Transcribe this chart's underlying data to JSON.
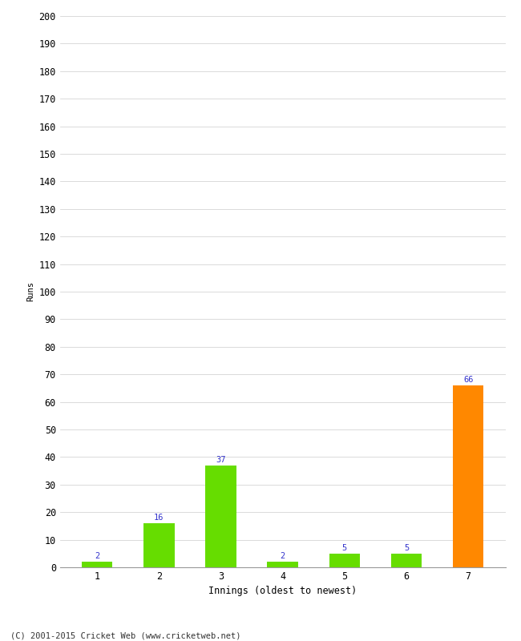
{
  "categories": [
    "1",
    "2",
    "3",
    "4",
    "5",
    "6",
    "7"
  ],
  "values": [
    2,
    16,
    37,
    2,
    5,
    5,
    66
  ],
  "bar_colors": [
    "#66dd00",
    "#66dd00",
    "#66dd00",
    "#66dd00",
    "#66dd00",
    "#66dd00",
    "#ff8800"
  ],
  "xlabel": "Innings (oldest to newest)",
  "ylabel": "Runs",
  "ylim": [
    0,
    200
  ],
  "yticks": [
    0,
    10,
    20,
    30,
    40,
    50,
    60,
    70,
    80,
    90,
    100,
    110,
    120,
    130,
    140,
    150,
    160,
    170,
    180,
    190,
    200
  ],
  "label_color": "#3333cc",
  "footer": "(C) 2001-2015 Cricket Web (www.cricketweb.net)",
  "label_fontsize": 7.5,
  "axis_fontsize": 8.5,
  "footer_fontsize": 7.5,
  "ylabel_fontsize": 7.5,
  "xlabel_fontsize": 8.5,
  "bar_width": 0.5
}
